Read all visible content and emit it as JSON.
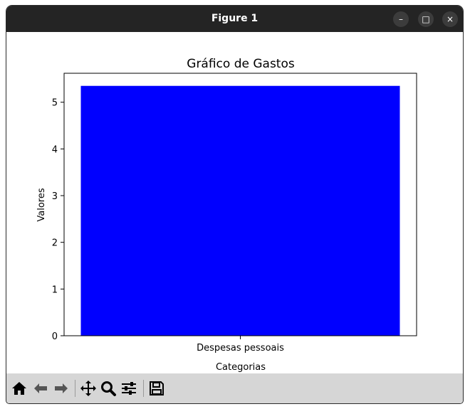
{
  "window": {
    "title": "Figure 1",
    "buttons": {
      "minimize": "–",
      "maximize": "□",
      "close": "×"
    }
  },
  "toolbar": {
    "icons": [
      "home-icon",
      "back-icon",
      "forward-icon",
      "pan-icon",
      "zoom-icon",
      "configure-subplots-icon",
      "save-icon"
    ]
  },
  "chart_data": {
    "type": "bar",
    "title": "Gráfico de Gastos",
    "xlabel": "Categorias",
    "ylabel": "Valores",
    "categories": [
      "Despesas pessoais"
    ],
    "values": [
      5.35
    ],
    "color": "#0000ff",
    "ylim": [
      0,
      5.62
    ],
    "yticks": [
      0,
      1,
      2,
      3,
      4,
      5
    ],
    "grid": false
  }
}
